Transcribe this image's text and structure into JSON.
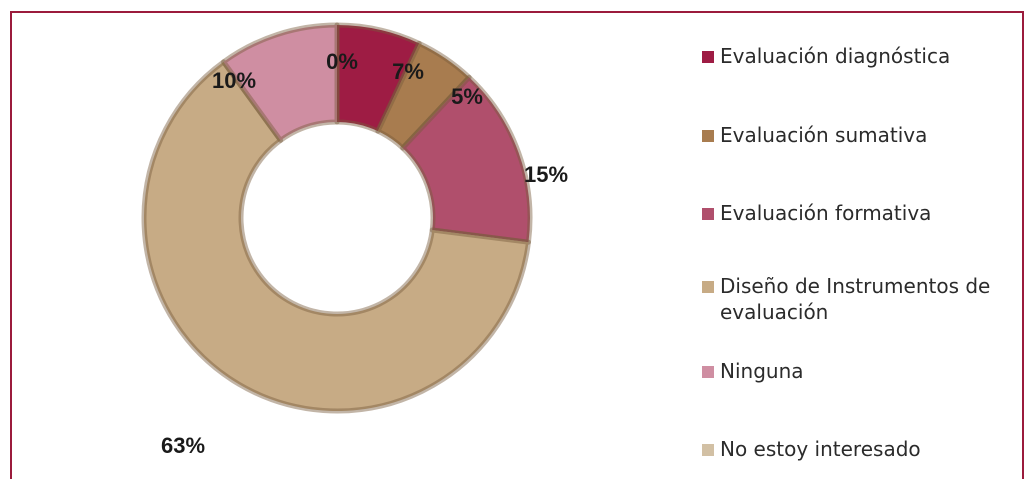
{
  "chart_data": {
    "type": "pie",
    "variant": "donut",
    "title": "",
    "slices": [
      {
        "label": "No estoy interesado",
        "value": 0,
        "display": "0%",
        "color": "#d2c0a4"
      },
      {
        "label": "Evaluación diagnóstica",
        "value": 7,
        "display": "7%",
        "color": "#9e1c44"
      },
      {
        "label": "Evaluación sumativa",
        "value": 5,
        "display": "5%",
        "color": "#a87c4f"
      },
      {
        "label": "Evaluación formativa",
        "value": 15,
        "display": "15%",
        "color": "#b04f6c"
      },
      {
        "label": "Diseño de Instrumentos de evaluación",
        "value": 63,
        "display": "63%",
        "color": "#c7ab85"
      },
      {
        "label": "Ninguna",
        "value": 10,
        "display": "10%",
        "color": "#cf8ea2"
      }
    ],
    "legend_position": "right",
    "legend": [
      {
        "text": "Evaluación diagnóstica",
        "color": "#9e1c44"
      },
      {
        "text": "Evaluación sumativa",
        "color": "#a87c4f"
      },
      {
        "text": "Evaluación formativa",
        "color": "#b04f6c"
      },
      {
        "text": "Diseño de Instrumentos de evaluación",
        "lines": [
          "Diseño de Instrumentos de",
          "evaluación"
        ],
        "color": "#c7ab85"
      },
      {
        "text": "Ninguna",
        "color": "#cf8ea2"
      },
      {
        "text": "No estoy interesado",
        "color": "#d2c0a4"
      }
    ]
  },
  "frame_color": "#9b1b3c"
}
